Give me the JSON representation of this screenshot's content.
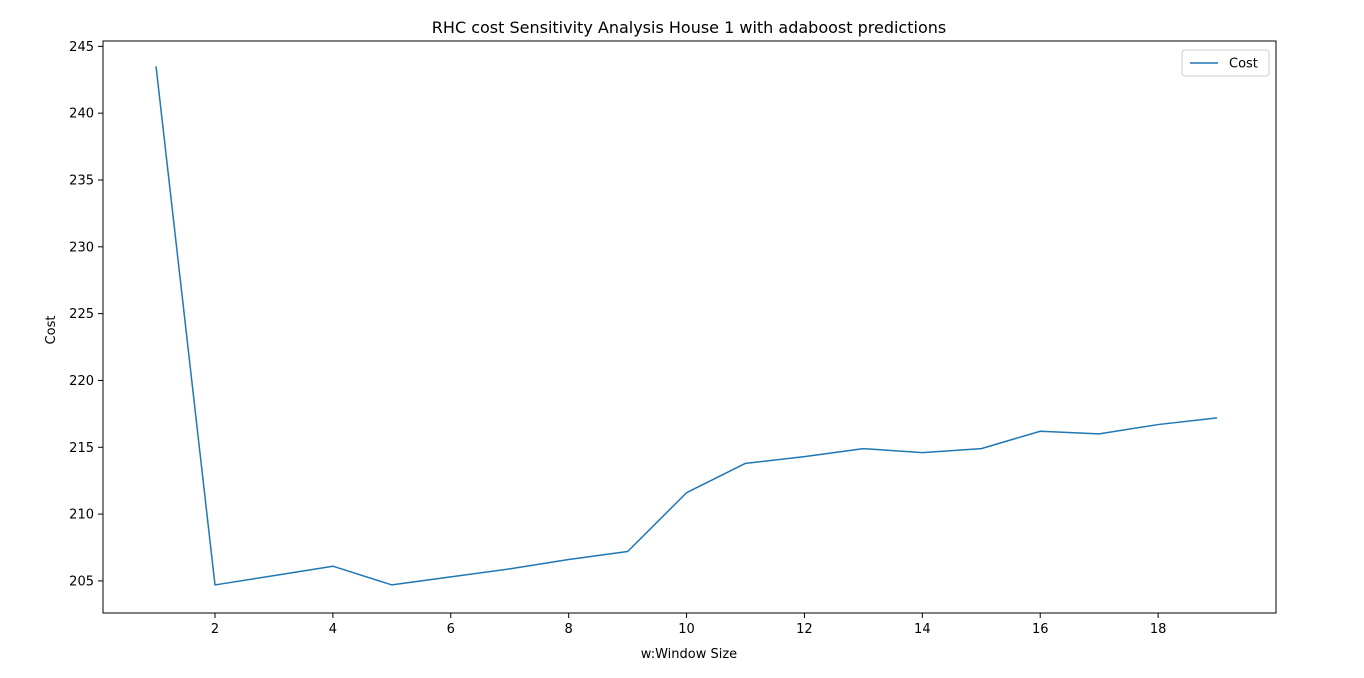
{
  "chart_data": {
    "type": "line",
    "title": "RHC cost Sensitivity Analysis House 1 with adaboost predictions",
    "xlabel": "w:Window Size",
    "ylabel": "Cost",
    "xlim": [
      0.1,
      20.0
    ],
    "ylim": [
      202.6,
      245.4
    ],
    "xticks": [
      2,
      4,
      6,
      8,
      10,
      12,
      14,
      16,
      18
    ],
    "yticks": [
      205,
      210,
      215,
      220,
      225,
      230,
      235,
      240,
      245
    ],
    "grid": false,
    "legend_position": "top-right",
    "series": [
      {
        "name": "Cost",
        "color": "#1f77b4",
        "x": [
          1,
          2,
          3,
          4,
          5,
          6,
          7,
          8,
          9,
          10,
          11,
          12,
          13,
          14,
          15,
          16,
          17,
          18,
          19
        ],
        "y": [
          243.5,
          204.7,
          205.4,
          206.1,
          204.7,
          205.3,
          205.9,
          206.6,
          207.2,
          211.6,
          213.8,
          214.3,
          214.9,
          214.6,
          214.9,
          216.2,
          216.0,
          216.7,
          217.2
        ]
      }
    ]
  }
}
